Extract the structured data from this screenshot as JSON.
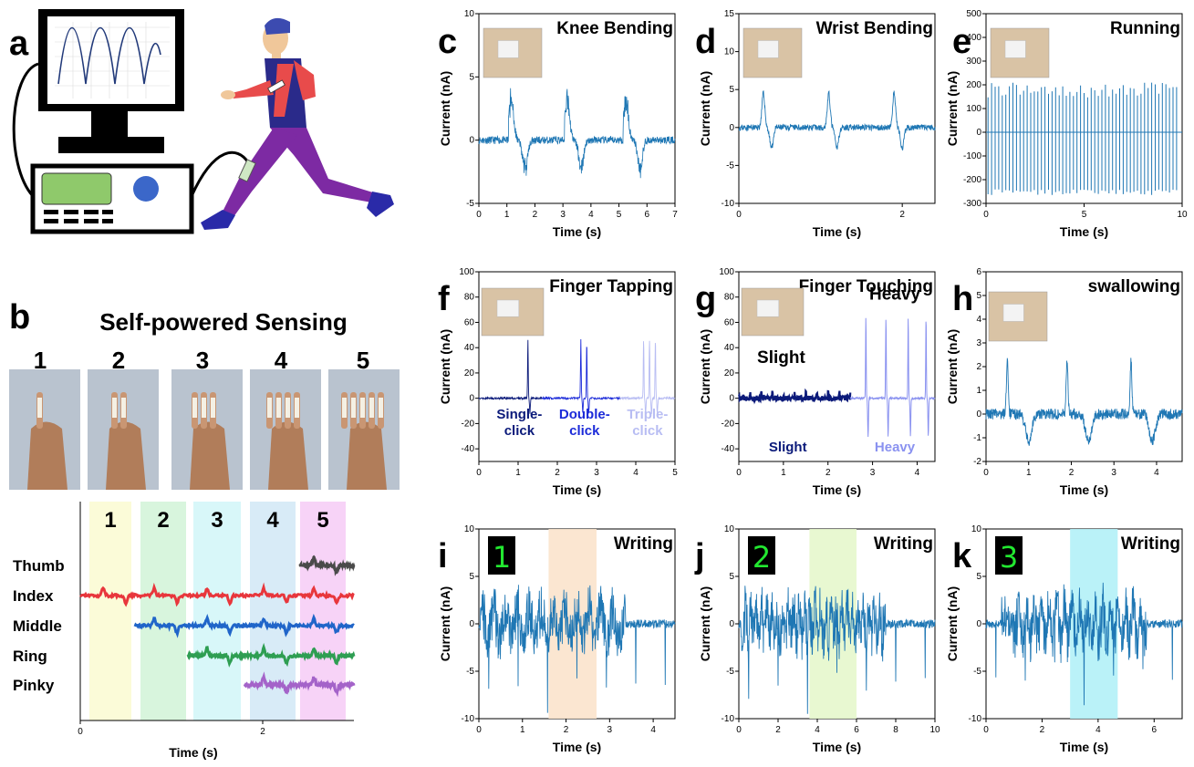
{
  "panels": {
    "a": "a",
    "b": "b",
    "b_title": "Self-powered Sensing",
    "b_photo_numbers": [
      "1",
      "2",
      "3",
      "4",
      "5"
    ]
  },
  "colors": {
    "signal": "#1f77b4",
    "thumb": "#4a4a4a",
    "index": "#e8363c",
    "middle": "#2065c9",
    "ring": "#2e9e52",
    "pinky": "#a463c9",
    "shade_1": "#fbfbd8",
    "shade_2": "#d8f5dd",
    "shade_3": "#d8f7f9",
    "shade_4": "#d8ebf7",
    "shade_5": "#f7d3f7",
    "writing_1": "#fbe3cc",
    "writing_2": "#e6f7cc",
    "writing_3": "#b3f1f7",
    "slight": "#0b1a7a",
    "heavy": "#8a92f0",
    "single": "#0b1a7a",
    "double": "#1c2bd9",
    "triple": "#b8bdf3"
  },
  "chart_data": [
    {
      "id": "b",
      "type": "line",
      "xlabel": "Time (s)",
      "xlim": [
        0,
        3.0
      ],
      "xticks": [
        0,
        2
      ],
      "bands": [
        {
          "label": "1",
          "x": [
            0.1,
            0.56
          ]
        },
        {
          "label": "2",
          "x": [
            0.66,
            1.16
          ]
        },
        {
          "label": "3",
          "x": [
            1.24,
            1.76
          ]
        },
        {
          "label": "4",
          "x": [
            1.86,
            2.36
          ]
        },
        {
          "label": "5",
          "x": [
            2.41,
            2.91
          ]
        }
      ],
      "series": [
        {
          "name": "Thumb",
          "start": 2.41
        },
        {
          "name": "Index",
          "start": 0.0
        },
        {
          "name": "Middle",
          "start": 0.6
        },
        {
          "name": "Ring",
          "start": 1.18
        },
        {
          "name": "Pinky",
          "start": 1.8
        }
      ]
    },
    {
      "id": "c",
      "type": "line",
      "title": "Knee Bending",
      "xlabel": "Time (s)",
      "ylabel": "Current (nA)",
      "xlim": [
        0,
        7
      ],
      "ylim": [
        -5,
        10
      ],
      "xticks": [
        0,
        1,
        2,
        3,
        4,
        5,
        6,
        7
      ],
      "yticks": [
        -5,
        0,
        5,
        10
      ],
      "events": [
        1.1,
        3.1,
        5.2
      ]
    },
    {
      "id": "d",
      "type": "line",
      "title": "Wrist Bending",
      "xlabel": "Time (s)",
      "ylabel": "Current (nA)",
      "xlim": [
        0,
        2.4
      ],
      "ylim": [
        -10,
        15
      ],
      "xticks": [
        0,
        2
      ],
      "yticks": [
        -10,
        -5,
        0,
        5,
        10,
        15
      ],
      "events": [
        0.3,
        1.1,
        1.9
      ]
    },
    {
      "id": "e",
      "type": "line",
      "title": "Running",
      "xlabel": "Time (s)",
      "ylabel": "Current (nA)",
      "xlim": [
        0,
        10
      ],
      "ylim": [
        -300,
        500
      ],
      "xticks": [
        0,
        5,
        10
      ],
      "yticks": [
        -300,
        -200,
        -100,
        0,
        100,
        200,
        300,
        400,
        500
      ],
      "peak_high": 210,
      "peak_low": -265
    },
    {
      "id": "f",
      "type": "line",
      "title": "Finger Tapping",
      "xlabel": "Time (s)",
      "ylabel": "Current (nA)",
      "xlim": [
        0,
        5
      ],
      "ylim": [
        -50,
        100
      ],
      "xticks": [
        0,
        1,
        2,
        3,
        4,
        5
      ],
      "yticks": [
        -40,
        -20,
        0,
        20,
        40,
        60,
        80,
        100
      ],
      "segments": [
        {
          "label": "Single-\nclick",
          "range": [
            0,
            1.6
          ],
          "peaks": [
            1.25
          ]
        },
        {
          "label": "Double-\nclick",
          "range": [
            1.6,
            3.6
          ],
          "peaks": [
            2.6,
            2.75
          ]
        },
        {
          "label": "Triple-\nclick",
          "range": [
            3.6,
            5
          ],
          "peaks": [
            4.2,
            4.35,
            4.5
          ]
        }
      ]
    },
    {
      "id": "g",
      "type": "line",
      "title": "Finger Touching",
      "xlabel": "Time (s)",
      "ylabel": "Current (nA)",
      "xlim": [
        0,
        4.4
      ],
      "ylim": [
        -50,
        100
      ],
      "xticks": [
        0,
        1,
        2,
        3,
        4
      ],
      "yticks": [
        -40,
        -20,
        0,
        20,
        40,
        60,
        80,
        100
      ],
      "annotations": {
        "slight_top": "Slight",
        "heavy_top": "Heavy",
        "slight_bottom": "Slight",
        "heavy_bottom": "Heavy"
      },
      "heavy_peaks": [
        2.85,
        3.3,
        3.8,
        4.2
      ]
    },
    {
      "id": "h",
      "type": "line",
      "title": "swallowing",
      "xlabel": "Time (s)",
      "ylabel": "Current (nA)",
      "xlim": [
        0,
        4.6
      ],
      "ylim": [
        -2,
        6
      ],
      "xticks": [
        0,
        1,
        2,
        3,
        4
      ],
      "yticks": [
        -2,
        -1,
        0,
        1,
        2,
        3,
        4,
        5,
        6
      ],
      "events": [
        0.5,
        1.9,
        3.4
      ]
    },
    {
      "id": "i",
      "type": "line",
      "title": "Writing",
      "glyph": "1",
      "xlabel": "Time (s)",
      "ylabel": "Current (nA)",
      "xlim": [
        0,
        4.5
      ],
      "ylim": [
        -10,
        10
      ],
      "xticks": [
        0,
        1,
        2,
        3,
        4
      ],
      "yticks": [
        -10,
        -5,
        0,
        5,
        10
      ],
      "highlight": [
        1.6,
        2.7
      ]
    },
    {
      "id": "j",
      "type": "line",
      "title": "Writing",
      "glyph": "2",
      "xlabel": "Time (s)",
      "ylabel": "Current (nA)",
      "xlim": [
        0,
        10
      ],
      "ylim": [
        -10,
        10
      ],
      "xticks": [
        0,
        2,
        4,
        6,
        8,
        10
      ],
      "yticks": [
        -10,
        -5,
        0,
        5,
        10
      ],
      "highlight": [
        3.6,
        6.0
      ]
    },
    {
      "id": "k",
      "type": "line",
      "title": "Writing",
      "glyph": "3",
      "xlabel": "Time (s)",
      "ylabel": "Current (nA)",
      "xlim": [
        0,
        7
      ],
      "ylim": [
        -10,
        10
      ],
      "xticks": [
        0,
        2,
        4,
        6
      ],
      "yticks": [
        -10,
        -5,
        0,
        5,
        10
      ],
      "highlight": [
        3.0,
        4.7
      ]
    }
  ]
}
